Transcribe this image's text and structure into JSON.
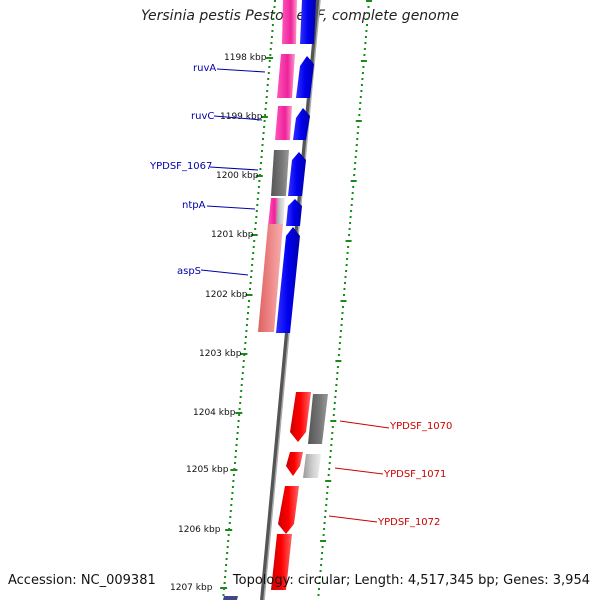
{
  "title": "Yersinia pestis Pestoides F, complete genome",
  "accession": "Accession: NC_009381",
  "topology": "Topology: circular; Length: 4,517,345 bp; Genes: 3,954",
  "colors": {
    "tick_green": "#1a8a1a",
    "backbone": "#777777",
    "forward_blue": "#0000ee",
    "magenta": "#ee2299",
    "grey_gene": "#666666",
    "light_grey_gene": "#bbbbbb",
    "salmon": "#e87a7a",
    "red_gene": "#ee0000",
    "blue_label": "#0000aa",
    "red_label": "#cc0000"
  },
  "scale_labels": [
    "1198 kbp",
    "1199 kbp",
    "1200 kbp",
    "1201 kbp",
    "1202 kbp",
    "1203 kbp",
    "1204 kbp",
    "1205 kbp",
    "1206 kbp",
    "1207 kbp"
  ],
  "gene_labels_left": [
    "ruvA",
    "ruvC",
    "YPDSF_1067",
    "ntpA",
    "aspS"
  ],
  "gene_labels_right": [
    "YPDSF_1070",
    "YPDSF_1071",
    "YPDSF_1072"
  ]
}
